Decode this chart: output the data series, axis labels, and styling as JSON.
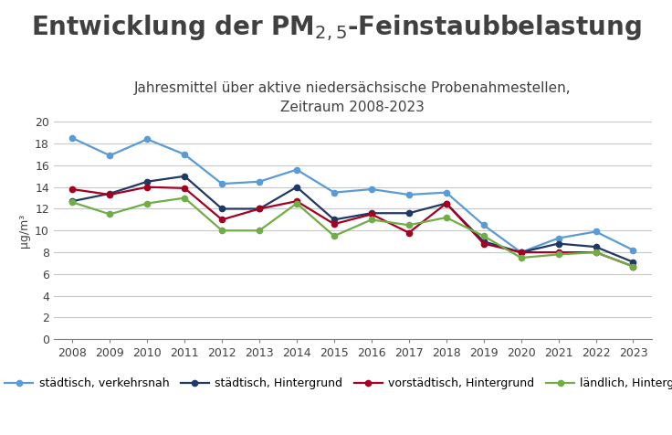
{
  "title": "Entwicklung der PM$_{2,5}$-Feinstaubbelastung",
  "subtitle": "Jahresmittel über aktive niedersächsische Probenahmestellen,\nZeitraum 2008-2023",
  "ylabel": "µg/m³",
  "years": [
    2008,
    2009,
    2010,
    2011,
    2012,
    2013,
    2014,
    2015,
    2016,
    2017,
    2018,
    2019,
    2020,
    2021,
    2022,
    2023
  ],
  "series": [
    {
      "label": "städtisch, verkehrsnah",
      "color": "#5B9BD5",
      "values": [
        18.5,
        16.9,
        18.4,
        17.0,
        14.3,
        14.5,
        15.6,
        13.5,
        13.8,
        13.3,
        13.5,
        10.5,
        8.0,
        9.3,
        9.9,
        8.2
      ]
    },
    {
      "label": "städtisch, Hintergrund",
      "color": "#203864",
      "values": [
        12.7,
        13.4,
        14.5,
        15.0,
        12.0,
        12.0,
        14.0,
        11.0,
        11.6,
        11.6,
        12.5,
        9.0,
        8.0,
        8.8,
        8.5,
        7.1
      ]
    },
    {
      "label": "vorstädtisch, Hintergrund",
      "color": "#A50021",
      "values": [
        13.8,
        13.3,
        14.0,
        13.9,
        11.0,
        12.0,
        12.7,
        10.6,
        11.5,
        9.8,
        12.5,
        8.8,
        8.0,
        8.0,
        8.0,
        6.7
      ]
    },
    {
      "label": "ländlich, Hintergrund",
      "color": "#70AD47",
      "values": [
        12.6,
        11.5,
        12.5,
        13.0,
        10.0,
        10.0,
        12.5,
        9.5,
        11.0,
        10.5,
        11.2,
        9.5,
        7.5,
        7.8,
        8.0,
        6.7
      ]
    }
  ],
  "ylim": [
    0,
    20
  ],
  "yticks": [
    0,
    2,
    4,
    6,
    8,
    10,
    12,
    14,
    16,
    18,
    20
  ],
  "background_color": "#ffffff",
  "grid_color": "#c8c8c8",
  "title_fontsize": 20,
  "subtitle_fontsize": 11,
  "axis_fontsize": 9,
  "ylabel_fontsize": 9,
  "legend_fontsize": 9,
  "title_color": "#404040",
  "subtitle_color": "#404040"
}
